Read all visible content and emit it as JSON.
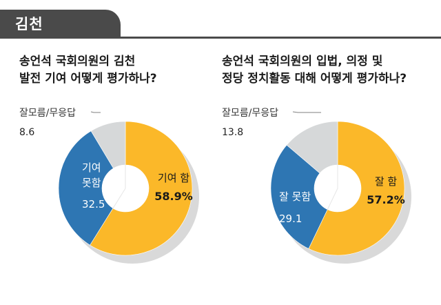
{
  "header": {
    "title": "김천"
  },
  "colors": {
    "yes": "#fbb829",
    "no": "#2e76b3",
    "unknown": "#d6d8d9",
    "shadow": "#d9d9d9",
    "leader": "#7f7f7f"
  },
  "chart_data": [
    {
      "type": "pie",
      "title_lines": [
        "송언석 국회의원의 김천",
        "발전 기여 어떻게 평가하나?"
      ],
      "slices": [
        {
          "label_lines": [
            "기여 함"
          ],
          "value": 58.9,
          "value_label": "58.9%"
        },
        {
          "label_lines": [
            "기여",
            "못함"
          ],
          "value": 32.5,
          "value_label": "32.5"
        },
        {
          "label_lines": [
            "잘모름/무응답"
          ],
          "value": 8.6,
          "value_label": "8.6"
        }
      ]
    },
    {
      "type": "pie",
      "title_lines": [
        "송언석 국회의원의 입법, 의정 및",
        "정당 정치활동 대해 어떻게 평가하나?"
      ],
      "slices": [
        {
          "label_lines": [
            "잘 함"
          ],
          "value": 57.2,
          "value_label": "57.2%"
        },
        {
          "label_lines": [
            "잘 못함"
          ],
          "value": 29.1,
          "value_label": "29.1"
        },
        {
          "label_lines": [
            "잘모름/무응답"
          ],
          "value": 13.8,
          "value_label": "13.8"
        }
      ]
    }
  ]
}
